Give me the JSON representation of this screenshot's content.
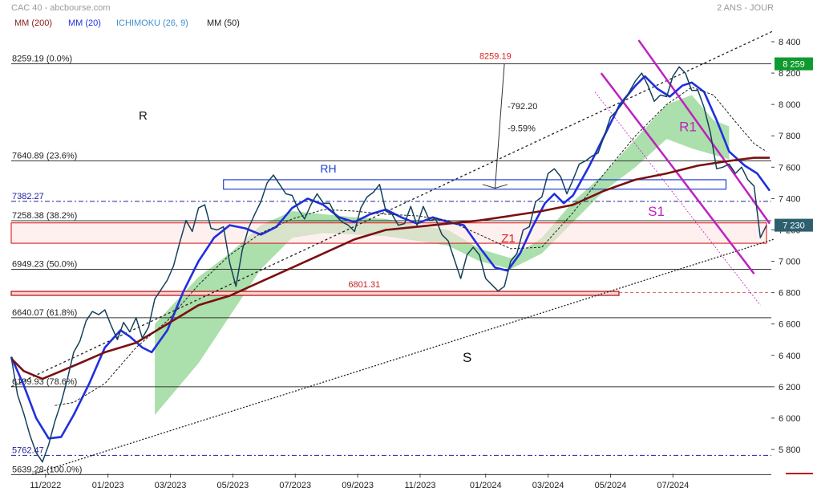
{
  "header": {
    "title": "CAC 40 - abcbourse.com",
    "period": "2 ANS - JOUR"
  },
  "legend": [
    {
      "label": "MM (200)",
      "color": "#8b1a1a"
    },
    {
      "label": "MM (20)",
      "color": "#1f2fe0"
    },
    {
      "label": "ICHIMOKU (26, 9)",
      "color": "#3f8fd0"
    },
    {
      "label": "MM (50)",
      "color": "#222222"
    }
  ],
  "colors": {
    "price": "#15415a",
    "mm20": "#1f2fe0",
    "mm200": "#7a1010",
    "mm50": "#222222",
    "cloud": "#8fd48f",
    "trend": "#222222",
    "magenta": "#c020c0",
    "zone": "#e03030",
    "rh": "#2040d0",
    "fib": "#333333",
    "dashblue": "#2020a0",
    "lastprice_bg": "#2d5f6e",
    "high_bg": "#0e9a2e"
  },
  "chart_data": {
    "type": "line",
    "title": "CAC 40 - abcbourse.com",
    "period": "2 ANS - JOUR",
    "x_ticks": [
      "11/2022",
      "01/2023",
      "03/2023",
      "05/2023",
      "07/2023",
      "09/2023",
      "11/2023",
      "01/2024",
      "03/2024",
      "05/2024",
      "07/2024"
    ],
    "y_ticks": [
      "5 800",
      "6 000",
      "6 200",
      "6 400",
      "6 600",
      "6 800",
      "7 000",
      "7 200",
      "7 400",
      "7 600",
      "7 800",
      "8 000",
      "8 200",
      "8 400"
    ],
    "ylim": [
      5640,
      8480
    ],
    "last_price_label": "7 230",
    "high_label": "8 259",
    "last_price": 7230,
    "series": [
      {
        "name": "MM (20)",
        "role": "mm20",
        "points": [
          [
            0,
            6390
          ],
          [
            4,
            6210
          ],
          [
            8,
            6000
          ],
          [
            12,
            5870
          ],
          [
            16,
            5880
          ],
          [
            20,
            6020
          ],
          [
            25,
            6220
          ],
          [
            30,
            6450
          ],
          [
            35,
            6560
          ],
          [
            38,
            6520
          ],
          [
            42,
            6450
          ],
          [
            45,
            6420
          ],
          [
            50,
            6560
          ],
          [
            55,
            6800
          ],
          [
            60,
            7000
          ],
          [
            65,
            7150
          ],
          [
            70,
            7230
          ],
          [
            75,
            7210
          ],
          [
            80,
            7170
          ],
          [
            85,
            7220
          ],
          [
            90,
            7340
          ],
          [
            95,
            7400
          ],
          [
            100,
            7360
          ],
          [
            105,
            7280
          ],
          [
            110,
            7250
          ],
          [
            115,
            7300
          ],
          [
            120,
            7330
          ],
          [
            125,
            7280
          ],
          [
            130,
            7240
          ],
          [
            135,
            7280
          ],
          [
            140,
            7250
          ],
          [
            145,
            7230
          ],
          [
            150,
            7090
          ],
          [
            155,
            6960
          ],
          [
            159,
            6940
          ],
          [
            163,
            7050
          ],
          [
            167,
            7220
          ],
          [
            171,
            7370
          ],
          [
            174,
            7430
          ],
          [
            177,
            7370
          ],
          [
            180,
            7420
          ],
          [
            185,
            7600
          ],
          [
            190,
            7800
          ],
          [
            195,
            8000
          ],
          [
            200,
            8120
          ],
          [
            203,
            8180
          ],
          [
            207,
            8100
          ],
          [
            211,
            8050
          ],
          [
            215,
            8120
          ],
          [
            218,
            8140
          ],
          [
            222,
            8080
          ],
          [
            226,
            7900
          ],
          [
            230,
            7700
          ],
          [
            235,
            7610
          ],
          [
            239,
            7560
          ],
          [
            243,
            7450
          ]
        ]
      },
      {
        "name": "MM (200)",
        "role": "mm200",
        "points": [
          [
            0,
            6380
          ],
          [
            4,
            6300
          ],
          [
            10,
            6250
          ],
          [
            16,
            6300
          ],
          [
            22,
            6350
          ],
          [
            30,
            6420
          ],
          [
            40,
            6480
          ],
          [
            50,
            6600
          ],
          [
            60,
            6720
          ],
          [
            70,
            6780
          ],
          [
            80,
            6870
          ],
          [
            90,
            6960
          ],
          [
            100,
            7050
          ],
          [
            110,
            7140
          ],
          [
            120,
            7200
          ],
          [
            130,
            7220
          ],
          [
            140,
            7240
          ],
          [
            150,
            7260
          ],
          [
            160,
            7290
          ],
          [
            170,
            7320
          ],
          [
            180,
            7360
          ],
          [
            190,
            7450
          ],
          [
            200,
            7520
          ],
          [
            210,
            7560
          ],
          [
            220,
            7610
          ],
          [
            230,
            7640
          ],
          [
            238,
            7660
          ],
          [
            243,
            7660
          ]
        ]
      },
      {
        "name": "MM (50)",
        "role": "mm50",
        "points": [
          [
            14,
            6080
          ],
          [
            20,
            6100
          ],
          [
            30,
            6220
          ],
          [
            40,
            6450
          ],
          [
            50,
            6620
          ],
          [
            60,
            6850
          ],
          [
            70,
            7040
          ],
          [
            80,
            7180
          ],
          [
            90,
            7270
          ],
          [
            100,
            7330
          ],
          [
            110,
            7320
          ],
          [
            120,
            7300
          ],
          [
            130,
            7290
          ],
          [
            140,
            7260
          ],
          [
            150,
            7170
          ],
          [
            160,
            7080
          ],
          [
            170,
            7090
          ],
          [
            180,
            7310
          ],
          [
            190,
            7560
          ],
          [
            200,
            7800
          ],
          [
            210,
            8000
          ],
          [
            218,
            8110
          ],
          [
            225,
            8060
          ],
          [
            232,
            7890
          ],
          [
            238,
            7750
          ],
          [
            242,
            7700
          ]
        ]
      }
    ],
    "price_path": [
      [
        0,
        6390
      ],
      [
        2,
        6150
      ],
      [
        4,
        6030
      ],
      [
        6,
        5890
      ],
      [
        8,
        5780
      ],
      [
        10,
        5720
      ],
      [
        12,
        5830
      ],
      [
        14,
        5980
      ],
      [
        16,
        6100
      ],
      [
        18,
        6250
      ],
      [
        20,
        6420
      ],
      [
        22,
        6490
      ],
      [
        24,
        6620
      ],
      [
        26,
        6680
      ],
      [
        28,
        6660
      ],
      [
        30,
        6690
      ],
      [
        32,
        6590
      ],
      [
        34,
        6500
      ],
      [
        36,
        6610
      ],
      [
        38,
        6550
      ],
      [
        40,
        6640
      ],
      [
        42,
        6510
      ],
      [
        44,
        6580
      ],
      [
        46,
        6760
      ],
      [
        48,
        6820
      ],
      [
        50,
        6880
      ],
      [
        52,
        6970
      ],
      [
        54,
        7120
      ],
      [
        56,
        7260
      ],
      [
        58,
        7190
      ],
      [
        60,
        7340
      ],
      [
        62,
        7360
      ],
      [
        64,
        7210
      ],
      [
        66,
        7200
      ],
      [
        68,
        7220
      ],
      [
        70,
        6990
      ],
      [
        72,
        6840
      ],
      [
        74,
        7070
      ],
      [
        76,
        7210
      ],
      [
        78,
        7300
      ],
      [
        80,
        7380
      ],
      [
        82,
        7500
      ],
      [
        84,
        7550
      ],
      [
        86,
        7490
      ],
      [
        88,
        7430
      ],
      [
        90,
        7420
      ],
      [
        92,
        7330
      ],
      [
        94,
        7270
      ],
      [
        96,
        7360
      ],
      [
        98,
        7430
      ],
      [
        100,
        7370
      ],
      [
        102,
        7370
      ],
      [
        104,
        7290
      ],
      [
        106,
        7250
      ],
      [
        108,
        7230
      ],
      [
        110,
        7190
      ],
      [
        112,
        7340
      ],
      [
        114,
        7410
      ],
      [
        116,
        7440
      ],
      [
        118,
        7490
      ],
      [
        120,
        7320
      ],
      [
        122,
        7300
      ],
      [
        124,
        7230
      ],
      [
        126,
        7240
      ],
      [
        128,
        7350
      ],
      [
        130,
        7230
      ],
      [
        132,
        7350
      ],
      [
        134,
        7260
      ],
      [
        136,
        7270
      ],
      [
        138,
        7170
      ],
      [
        140,
        7130
      ],
      [
        142,
        7010
      ],
      [
        144,
        6890
      ],
      [
        146,
        7040
      ],
      [
        148,
        7090
      ],
      [
        150,
        7040
      ],
      [
        152,
        6890
      ],
      [
        154,
        6850
      ],
      [
        156,
        6810
      ],
      [
        158,
        6840
      ],
      [
        160,
        7000
      ],
      [
        162,
        7050
      ],
      [
        164,
        7200
      ],
      [
        166,
        7220
      ],
      [
        168,
        7380
      ],
      [
        170,
        7410
      ],
      [
        172,
        7560
      ],
      [
        174,
        7590
      ],
      [
        176,
        7540
      ],
      [
        178,
        7430
      ],
      [
        180,
        7520
      ],
      [
        182,
        7620
      ],
      [
        184,
        7640
      ],
      [
        186,
        7670
      ],
      [
        188,
        7690
      ],
      [
        190,
        7800
      ],
      [
        192,
        7920
      ],
      [
        194,
        7960
      ],
      [
        196,
        8010
      ],
      [
        198,
        8080
      ],
      [
        200,
        8150
      ],
      [
        202,
        8200
      ],
      [
        204,
        8120
      ],
      [
        206,
        8020
      ],
      [
        208,
        8060
      ],
      [
        210,
        8050
      ],
      [
        212,
        8180
      ],
      [
        214,
        8240
      ],
      [
        216,
        8200
      ],
      [
        218,
        8090
      ],
      [
        220,
        8090
      ],
      [
        222,
        7980
      ],
      [
        224,
        7820
      ],
      [
        226,
        7590
      ],
      [
        228,
        7600
      ],
      [
        230,
        7620
      ],
      [
        232,
        7560
      ],
      [
        234,
        7600
      ],
      [
        236,
        7520
      ],
      [
        238,
        7480
      ],
      [
        240,
        7150
      ],
      [
        242,
        7230
      ]
    ],
    "cloud": {
      "from": 46,
      "to": 230,
      "top": [
        [
          46,
          6600
        ],
        [
          60,
          6900
        ],
        [
          70,
          7050
        ],
        [
          80,
          7230
        ],
        [
          90,
          7320
        ],
        [
          100,
          7300
        ],
        [
          110,
          7280
        ],
        [
          120,
          7270
        ],
        [
          130,
          7230
        ],
        [
          140,
          7200
        ],
        [
          150,
          7080
        ],
        [
          160,
          7020
        ],
        [
          170,
          7150
        ],
        [
          180,
          7380
        ],
        [
          190,
          7560
        ],
        [
          200,
          7780
        ],
        [
          210,
          8000
        ],
        [
          218,
          8060
        ],
        [
          225,
          7900
        ],
        [
          230,
          7860
        ]
      ],
      "bottom": [
        [
          46,
          6020
        ],
        [
          60,
          6350
        ],
        [
          70,
          6650
        ],
        [
          80,
          6950
        ],
        [
          90,
          7150
        ],
        [
          100,
          7180
        ],
        [
          110,
          7170
        ],
        [
          120,
          7160
        ],
        [
          130,
          7130
        ],
        [
          140,
          7100
        ],
        [
          150,
          7000
        ],
        [
          160,
          6950
        ],
        [
          170,
          7050
        ],
        [
          180,
          7250
        ],
        [
          190,
          7450
        ],
        [
          200,
          7600
        ],
        [
          210,
          7780
        ],
        [
          218,
          7720
        ],
        [
          225,
          7680
        ],
        [
          230,
          7650
        ]
      ]
    },
    "levels": [
      {
        "label": "8259.19 (0.0%)",
        "value": 8259.19,
        "style": "solid"
      },
      {
        "label": "7640.89 (23.6%)",
        "value": 7640.89,
        "style": "solid"
      },
      {
        "label": "7382.27",
        "value": 7382.27,
        "style": "dashdot"
      },
      {
        "label": "7258.38 (38.2%)",
        "value": 7258.38,
        "style": "solid"
      },
      {
        "label": "6949.23 (50.0%)",
        "value": 6949.23,
        "style": "solid"
      },
      {
        "label": "6640.07 (61.8%)",
        "value": 6640.07,
        "style": "solid"
      },
      {
        "label": "6199.93 (78.6%)",
        "value": 6199.93,
        "style": "solid"
      },
      {
        "label": "5762.47",
        "value": 5762.47,
        "style": "dashdot"
      },
      {
        "label": "5639.28 (100.0%)",
        "value": 5639.28,
        "style": "solid"
      }
    ],
    "annotations": {
      "peak_label": "8259.19",
      "measure_line1": "-792.20",
      "measure_line2": "-9.59%",
      "support_label": "6801.31",
      "RH": "RH",
      "Z1": "Z1",
      "R": "R",
      "S": "S",
      "R1": "R1",
      "S1": "S1"
    }
  }
}
